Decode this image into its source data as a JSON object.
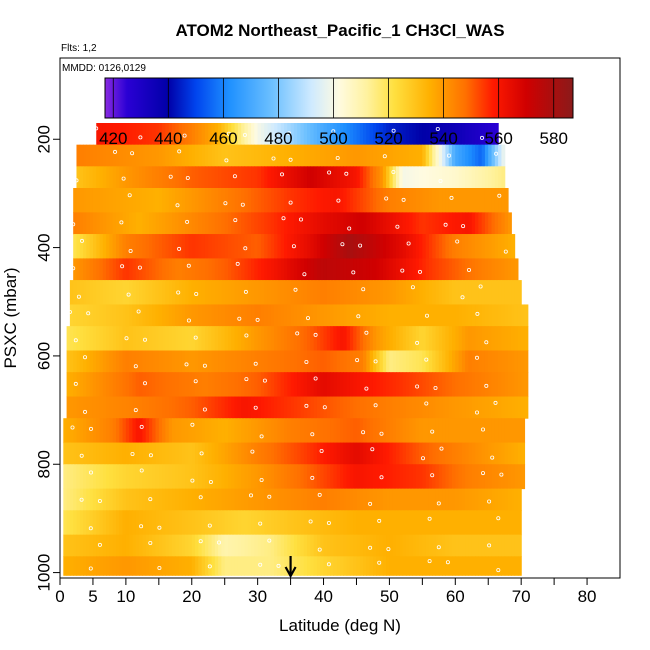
{
  "chart_data": {
    "type": "heatmap",
    "title": "ATOM2 Northeast_Pacific_1 CH3Cl_WAS",
    "annotations": [
      "Flts: 1,2",
      "MMDD: 0126,0129"
    ],
    "xlabel": "Latitude (deg N)",
    "ylabel": "PSXC (mbar)",
    "xlim": [
      0,
      85
    ],
    "ylim": [
      1010,
      50
    ],
    "x_ticks": [
      0,
      5,
      10,
      20,
      30,
      40,
      50,
      60,
      70,
      80
    ],
    "x_minor_ticks": [
      15,
      25,
      35,
      45,
      55,
      65,
      75
    ],
    "y_ticks": [
      200,
      400,
      600,
      800,
      1000
    ],
    "colorbar": {
      "min": 417,
      "max": 587,
      "ticks": [
        420,
        440,
        460,
        480,
        500,
        520,
        540,
        560,
        580
      ],
      "stops": [
        {
          "v": 417,
          "c": "#8a2be2"
        },
        {
          "v": 425,
          "c": "#2a00d4"
        },
        {
          "v": 440,
          "c": "#0000a8"
        },
        {
          "v": 450,
          "c": "#0044ee"
        },
        {
          "v": 462,
          "c": "#1e90ff"
        },
        {
          "v": 478,
          "c": "#6ec1ff"
        },
        {
          "v": 492,
          "c": "#cfeaff"
        },
        {
          "v": 502,
          "c": "#fffbe0"
        },
        {
          "v": 512,
          "c": "#fff2a0"
        },
        {
          "v": 522,
          "c": "#ffe040"
        },
        {
          "v": 535,
          "c": "#ffb000"
        },
        {
          "v": 548,
          "c": "#ff7000"
        },
        {
          "v": 558,
          "c": "#ff1a00"
        },
        {
          "v": 570,
          "c": "#d00000"
        },
        {
          "v": 587,
          "c": "#8b1a1a"
        }
      ]
    },
    "rows": [
      {
        "p_top": 170,
        "p_bot": 210,
        "lat_min": 5.5,
        "lat_max": 66.5,
        "k": [
          [
            5.5,
            560
          ],
          [
            15,
            555
          ],
          [
            20,
            545
          ],
          [
            24,
            535
          ],
          [
            30,
            500
          ],
          [
            40,
            470
          ],
          [
            50,
            445
          ],
          [
            60,
            435
          ],
          [
            66.5,
            425
          ]
        ]
      },
      {
        "p_top": 210,
        "p_bot": 250,
        "lat_min": 2.5,
        "lat_max": 67.5,
        "k": [
          [
            2.5,
            545
          ],
          [
            15,
            540
          ],
          [
            25,
            530
          ],
          [
            35,
            535
          ],
          [
            45,
            540
          ],
          [
            55,
            535
          ],
          [
            60,
            470
          ],
          [
            64,
            455
          ],
          [
            67.5,
            500
          ]
        ]
      },
      {
        "p_top": 250,
        "p_bot": 290,
        "lat_min": 2.5,
        "lat_max": 67.5,
        "k": [
          [
            2.5,
            530
          ],
          [
            10,
            540
          ],
          [
            20,
            550
          ],
          [
            30,
            555
          ],
          [
            38,
            570
          ],
          [
            45,
            560
          ],
          [
            49,
            540
          ],
          [
            52,
            500
          ],
          [
            60,
            505
          ],
          [
            67.5,
            515
          ]
        ]
      },
      {
        "p_top": 290,
        "p_bot": 335,
        "lat_min": 2.0,
        "lat_max": 68.0,
        "k": [
          [
            2,
            540
          ],
          [
            15,
            535
          ],
          [
            25,
            545
          ],
          [
            35,
            555
          ],
          [
            42,
            560
          ],
          [
            50,
            545
          ],
          [
            58,
            540
          ],
          [
            68,
            540
          ]
        ]
      },
      {
        "p_top": 335,
        "p_bot": 375,
        "lat_min": 2.0,
        "lat_max": 68.5,
        "k": [
          [
            2,
            545
          ],
          [
            12,
            535
          ],
          [
            22,
            545
          ],
          [
            32,
            555
          ],
          [
            40,
            565
          ],
          [
            46,
            570
          ],
          [
            55,
            555
          ],
          [
            62,
            560
          ],
          [
            68.5,
            540
          ]
        ]
      },
      {
        "p_top": 375,
        "p_bot": 420,
        "lat_min": 2.0,
        "lat_max": 69.0,
        "k": [
          [
            2,
            520
          ],
          [
            10,
            545
          ],
          [
            20,
            555
          ],
          [
            30,
            550
          ],
          [
            38,
            565
          ],
          [
            44,
            580
          ],
          [
            52,
            565
          ],
          [
            60,
            545
          ],
          [
            69,
            535
          ]
        ]
      },
      {
        "p_top": 420,
        "p_bot": 460,
        "lat_min": 2.0,
        "lat_max": 69.5,
        "k": [
          [
            2,
            540
          ],
          [
            10,
            555
          ],
          [
            18,
            545
          ],
          [
            25,
            550
          ],
          [
            32,
            560
          ],
          [
            40,
            575
          ],
          [
            48,
            570
          ],
          [
            56,
            555
          ],
          [
            64,
            545
          ],
          [
            69.5,
            540
          ]
        ]
      },
      {
        "p_top": 460,
        "p_bot": 505,
        "lat_min": 1.5,
        "lat_max": 70.0,
        "k": [
          [
            1.5,
            530
          ],
          [
            10,
            525
          ],
          [
            20,
            535
          ],
          [
            30,
            540
          ],
          [
            40,
            545
          ],
          [
            50,
            540
          ],
          [
            60,
            530
          ],
          [
            70,
            530
          ]
        ]
      },
      {
        "p_top": 505,
        "p_bot": 545,
        "lat_min": 1.5,
        "lat_max": 71.0,
        "k": [
          [
            1.5,
            525
          ],
          [
            10,
            530
          ],
          [
            20,
            540
          ],
          [
            30,
            545
          ],
          [
            40,
            540
          ],
          [
            50,
            535
          ],
          [
            60,
            535
          ],
          [
            71,
            530
          ]
        ]
      },
      {
        "p_top": 545,
        "p_bot": 590,
        "lat_min": 1.0,
        "lat_max": 71.0,
        "k": [
          [
            1,
            520
          ],
          [
            10,
            530
          ],
          [
            20,
            525
          ],
          [
            30,
            540
          ],
          [
            38,
            550
          ],
          [
            43,
            560
          ],
          [
            48,
            540
          ],
          [
            55,
            525
          ],
          [
            62,
            540
          ],
          [
            71,
            535
          ]
        ]
      },
      {
        "p_top": 590,
        "p_bot": 630,
        "lat_min": 1.0,
        "lat_max": 71.0,
        "k": [
          [
            1,
            530
          ],
          [
            10,
            545
          ],
          [
            20,
            540
          ],
          [
            30,
            545
          ],
          [
            40,
            550
          ],
          [
            46,
            545
          ],
          [
            50,
            515
          ],
          [
            55,
            520
          ],
          [
            62,
            545
          ],
          [
            71,
            540
          ]
        ]
      },
      {
        "p_top": 630,
        "p_bot": 675,
        "lat_min": 1.0,
        "lat_max": 71.0,
        "k": [
          [
            1,
            535
          ],
          [
            12,
            550
          ],
          [
            22,
            545
          ],
          [
            30,
            550
          ],
          [
            40,
            565
          ],
          [
            45,
            560
          ],
          [
            52,
            555
          ],
          [
            60,
            548
          ],
          [
            71,
            540
          ]
        ]
      },
      {
        "p_top": 675,
        "p_bot": 715,
        "lat_min": 1.0,
        "lat_max": 71.0,
        "k": [
          [
            1,
            540
          ],
          [
            12,
            545
          ],
          [
            20,
            550
          ],
          [
            28,
            560
          ],
          [
            35,
            555
          ],
          [
            42,
            550
          ],
          [
            50,
            545
          ],
          [
            60,
            540
          ],
          [
            71,
            535
          ]
        ]
      },
      {
        "p_top": 715,
        "p_bot": 760,
        "lat_min": 0.5,
        "lat_max": 70.5,
        "k": [
          [
            0.5,
            535
          ],
          [
            8,
            545
          ],
          [
            12,
            560
          ],
          [
            17,
            540
          ],
          [
            25,
            535
          ],
          [
            35,
            545
          ],
          [
            45,
            550
          ],
          [
            55,
            540
          ],
          [
            65,
            540
          ],
          [
            70.5,
            540
          ]
        ]
      },
      {
        "p_top": 760,
        "p_bot": 800,
        "lat_min": 0.5,
        "lat_max": 70.5,
        "k": [
          [
            0.5,
            530
          ],
          [
            10,
            535
          ],
          [
            20,
            530
          ],
          [
            30,
            545
          ],
          [
            38,
            555
          ],
          [
            45,
            565
          ],
          [
            55,
            550
          ],
          [
            65,
            540
          ],
          [
            70.5,
            535
          ]
        ]
      },
      {
        "p_top": 800,
        "p_bot": 845,
        "lat_min": 0.5,
        "lat_max": 70.5,
        "k": [
          [
            0.5,
            515
          ],
          [
            10,
            525
          ],
          [
            20,
            530
          ],
          [
            30,
            540
          ],
          [
            38,
            550
          ],
          [
            45,
            560
          ],
          [
            55,
            555
          ],
          [
            62,
            545
          ],
          [
            70.5,
            540
          ]
        ]
      },
      {
        "p_top": 845,
        "p_bot": 885,
        "lat_min": 0.5,
        "lat_max": 70.0,
        "k": [
          [
            0.5,
            515
          ],
          [
            10,
            530
          ],
          [
            20,
            535
          ],
          [
            30,
            540
          ],
          [
            40,
            545
          ],
          [
            50,
            540
          ],
          [
            60,
            540
          ],
          [
            70,
            535
          ]
        ]
      },
      {
        "p_top": 885,
        "p_bot": 930,
        "lat_min": 0.5,
        "lat_max": 70.0,
        "k": [
          [
            0.5,
            520
          ],
          [
            10,
            535
          ],
          [
            20,
            530
          ],
          [
            28,
            525
          ],
          [
            36,
            530
          ],
          [
            45,
            535
          ],
          [
            55,
            535
          ],
          [
            70,
            535
          ]
        ]
      },
      {
        "p_top": 930,
        "p_bot": 970,
        "lat_min": 0.5,
        "lat_max": 70.0,
        "k": [
          [
            0.5,
            530
          ],
          [
            10,
            535
          ],
          [
            20,
            525
          ],
          [
            25,
            510
          ],
          [
            32,
            515
          ],
          [
            40,
            530
          ],
          [
            50,
            535
          ],
          [
            60,
            530
          ],
          [
            70,
            530
          ]
        ]
      },
      {
        "p_top": 970,
        "p_bot": 1005,
        "lat_min": 0.5,
        "lat_max": 70.0,
        "k": [
          [
            0.5,
            535
          ],
          [
            10,
            540
          ],
          [
            20,
            535
          ],
          [
            25,
            515
          ],
          [
            32,
            515
          ],
          [
            40,
            525
          ],
          [
            50,
            535
          ],
          [
            60,
            535
          ],
          [
            70,
            535
          ]
        ]
      }
    ],
    "marker_latitude": 35
  }
}
